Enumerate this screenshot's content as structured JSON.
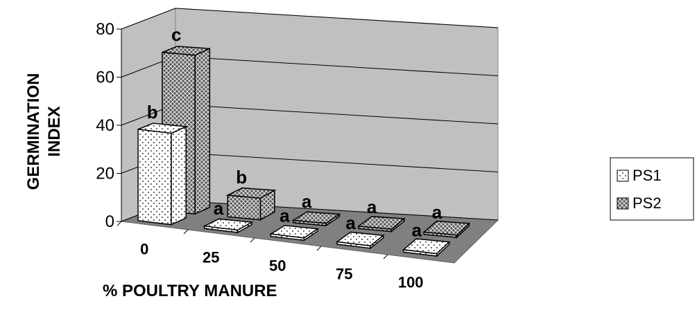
{
  "chart_data": {
    "type": "bar3d",
    "x_label": "% POULTRY MANURE",
    "y_label": "GERMINATION INDEX",
    "categories": [
      "0",
      "25",
      "50",
      "75",
      "100"
    ],
    "series": [
      {
        "name": "PS1",
        "color": "#ffffff",
        "values": [
          38,
          1,
          1,
          1,
          1
        ],
        "labels": [
          "b",
          "a",
          "a",
          "a",
          "a"
        ]
      },
      {
        "name": "PS2",
        "color": "#555555",
        "values": [
          66,
          9,
          1,
          1,
          1
        ],
        "labels": [
          "c",
          "b",
          "a",
          "a",
          "a"
        ]
      }
    ],
    "ylim": [
      0,
      80
    ],
    "yticks": [
      0,
      20,
      40,
      60,
      80
    ],
    "grid": true,
    "legend": "right"
  }
}
